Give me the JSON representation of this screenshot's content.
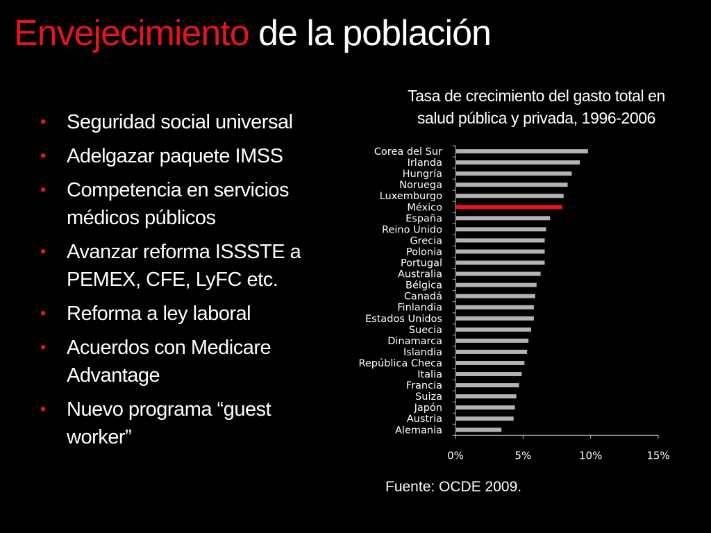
{
  "slide": {
    "title_accent": "Envejecimiento",
    "title_rest": " de la población",
    "bullet_marker": "•",
    "bullets": [
      "Seguridad social universal",
      "Adelgazar paquete IMSS",
      "Competencia en servicios médicos públicos",
      "Avanzar reforma ISSSTE a PEMEX, CFE, LyFC etc.",
      "Reforma a ley laboral",
      "Acuerdos con Medicare Advantage",
      "Nuevo programa “guest worker”"
    ],
    "source": "Fuente: OCDE 2009."
  },
  "colors": {
    "accent": "#e8141b",
    "bar": "#b3b3b3",
    "highlight_bar": "#e8141b"
  },
  "chart_data": {
    "type": "bar",
    "orientation": "horizontal",
    "title": "Tasa de crecimiento del gasto total en salud pública y privada, 1996-2006",
    "xlim": [
      0,
      15
    ],
    "xticks": [
      0,
      5,
      10,
      15
    ],
    "xtick_labels": [
      "0%",
      "5%",
      "10%",
      "15%"
    ],
    "highlight": "México",
    "categories": [
      "Corea del Sur",
      "Irlanda",
      "Hungría",
      "Noruega",
      "Luxemburgo",
      "México",
      "España",
      "Reino Unido",
      "Grecia",
      "Polonia",
      "Portugal",
      "Australia",
      "Bélgica",
      "Canadá",
      "Finlandia",
      "Estados Unidos",
      "Suecia",
      "Dinamarca",
      "Islandia",
      "República Checa",
      "Italia",
      "Francia",
      "Suiza",
      "Japón",
      "Austria",
      "Alemania"
    ],
    "values": [
      9.8,
      9.2,
      8.6,
      8.3,
      8.0,
      7.9,
      7.0,
      6.7,
      6.6,
      6.6,
      6.6,
      6.3,
      6.0,
      5.9,
      5.8,
      5.8,
      5.6,
      5.4,
      5.3,
      5.1,
      4.9,
      4.7,
      4.5,
      4.4,
      4.3,
      3.4
    ]
  }
}
